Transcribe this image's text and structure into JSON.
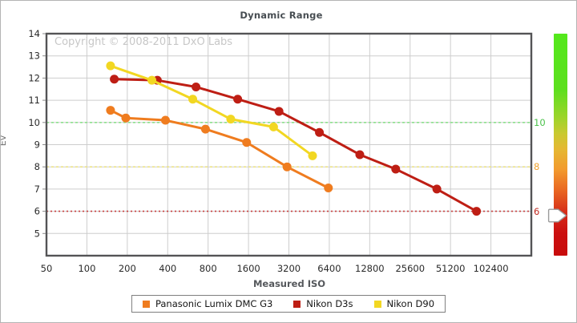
{
  "copyright": "Copyright © 2008-2011 DxO Labs",
  "chart_data": {
    "type": "line",
    "title": "Dynamic Range",
    "xlabel": "Measured ISO",
    "ylabel": "Ev",
    "x_scale": "log2",
    "x_range": [
      50,
      204800
    ],
    "x_ticks": [
      50,
      100,
      200,
      400,
      800,
      1600,
      3200,
      6400,
      12800,
      25600,
      51200,
      102400
    ],
    "y_range": [
      4,
      14
    ],
    "y_ticks": [
      5,
      6,
      7,
      8,
      9,
      10,
      11,
      12,
      13,
      14
    ],
    "grid": true,
    "legend_position": "bottom",
    "series": [
      {
        "name": "Panasonic Lumix DMC G3",
        "color": "#EF7C1F",
        "points": [
          [
            150,
            10.55
          ],
          [
            195,
            10.2
          ],
          [
            385,
            10.1
          ],
          [
            765,
            9.7
          ],
          [
            1550,
            9.1
          ],
          [
            3100,
            8.0
          ],
          [
            6300,
            7.05
          ]
        ]
      },
      {
        "name": "Nikon D3s",
        "color": "#BE1E14",
        "points": [
          [
            160,
            11.95
          ],
          [
            335,
            11.9
          ],
          [
            650,
            11.6
          ],
          [
            1330,
            11.05
          ],
          [
            2700,
            10.5
          ],
          [
            5400,
            9.55
          ],
          [
            10800,
            8.55
          ],
          [
            20000,
            7.9
          ],
          [
            40500,
            7.0
          ],
          [
            80000,
            6.0
          ]
        ]
      },
      {
        "name": "Nikon D90",
        "color": "#F2D722",
        "points": [
          [
            150,
            12.55
          ],
          [
            305,
            11.9
          ],
          [
            615,
            11.05
          ],
          [
            1180,
            10.15
          ],
          [
            2460,
            9.8
          ],
          [
            4800,
            8.5
          ]
        ]
      }
    ],
    "reference_lines": [
      {
        "value": 10,
        "label": "10",
        "line_color": "#8ee08e",
        "label_color": "#4cc24c",
        "dash": "3,3"
      },
      {
        "value": 8,
        "label": "8",
        "line_color": "#ece389",
        "label_color": "#efa22e",
        "dash": "3,3"
      },
      {
        "value": 6,
        "label": "6",
        "line_color": "#c84040",
        "label_color": "#c0281e",
        "dash": "2,3"
      }
    ],
    "gradient_bar": {
      "stops": [
        {
          "pos": 0,
          "color": "#54e81c"
        },
        {
          "pos": 25,
          "color": "#5cdf1e"
        },
        {
          "pos": 38,
          "color": "#9ed42a"
        },
        {
          "pos": 45,
          "color": "#c9c930"
        },
        {
          "pos": 52,
          "color": "#e5b832"
        },
        {
          "pos": 61,
          "color": "#f29b2e"
        },
        {
          "pos": 70,
          "color": "#ea6a22"
        },
        {
          "pos": 81,
          "color": "#d52a18"
        },
        {
          "pos": 90,
          "color": "#cb0f0f"
        },
        {
          "pos": 100,
          "color": "#c80c0c"
        }
      ],
      "pointer_value": 5.8
    }
  }
}
